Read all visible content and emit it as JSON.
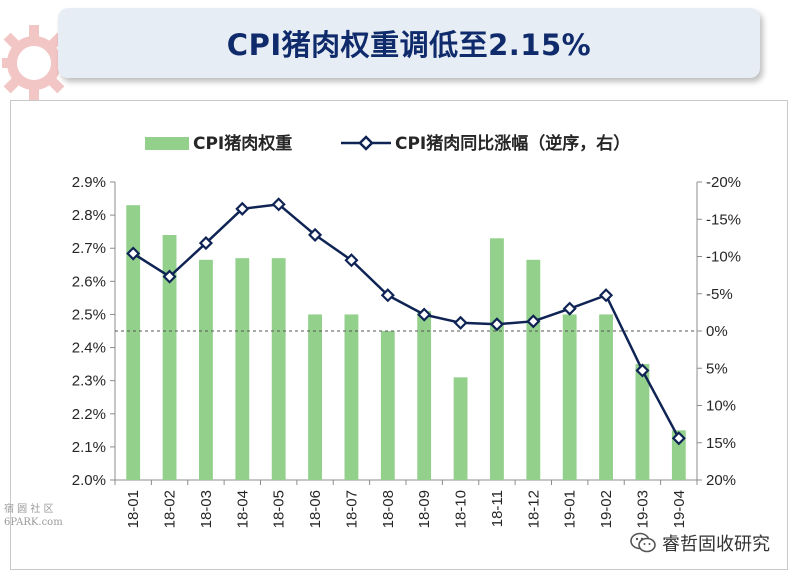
{
  "title": "CPI猪肉权重调低至2.15%",
  "watermark_left": {
    "line1": "宿 圆 社 区",
    "line2": "6PARK.com"
  },
  "watermark_right": {
    "text": "睿哲固收研究",
    "icon": "wechat-icon"
  },
  "colors": {
    "bar": "#92d08b",
    "line": "#0f2454",
    "title": "#0f2b6b",
    "banner": "#e7edf4",
    "gear": "#f3c6c6"
  },
  "chart_data": {
    "type": "bar",
    "categories": [
      "18-01",
      "18-02",
      "18-03",
      "18-04",
      "18-05",
      "18-06",
      "18-07",
      "18-08",
      "18-09",
      "18-10",
      "18-11",
      "18-12",
      "19-01",
      "19-02",
      "19-03",
      "19-04"
    ],
    "legend": {
      "placement": "top-center",
      "bar_label": "CPI猪肉权重",
      "line_label": "CPI猪肉同比涨幅（逆序，右）"
    },
    "series": [
      {
        "name": "CPI猪肉权重",
        "type": "bar",
        "axis": "left",
        "values": [
          2.83,
          2.74,
          2.665,
          2.67,
          2.67,
          2.5,
          2.5,
          2.45,
          2.51,
          2.31,
          2.73,
          2.665,
          2.5,
          2.5,
          2.35,
          2.15
        ]
      },
      {
        "name": "CPI猪肉同比涨幅（逆序，右）",
        "type": "line",
        "axis": "right",
        "values": [
          -10.4,
          -7.3,
          -11.8,
          -16.4,
          -17.0,
          -12.9,
          -9.5,
          -4.8,
          -2.2,
          -1.1,
          -0.9,
          -1.3,
          -3.0,
          -4.8,
          5.3,
          14.4
        ]
      }
    ],
    "y_left": {
      "ylim": [
        2.0,
        2.9
      ],
      "ticks": [
        "2.0%",
        "2.1%",
        "2.2%",
        "2.3%",
        "2.4%",
        "2.5%",
        "2.6%",
        "2.7%",
        "2.8%",
        "2.9%"
      ],
      "tick_values": [
        2.0,
        2.1,
        2.2,
        2.3,
        2.4,
        2.5,
        2.6,
        2.7,
        2.8,
        2.9
      ]
    },
    "y_right": {
      "ylim": [
        20,
        -20
      ],
      "reversed": true,
      "ticks": [
        "20%",
        "15%",
        "10%",
        "5%",
        "0%",
        "-5%",
        "-10%",
        "-15%",
        "-20%"
      ],
      "tick_values": [
        20,
        15,
        10,
        5,
        0,
        -5,
        -10,
        -15,
        -20
      ]
    },
    "reference_line": {
      "axis": "right",
      "value": 0,
      "style": "dashed"
    },
    "grid": false
  }
}
